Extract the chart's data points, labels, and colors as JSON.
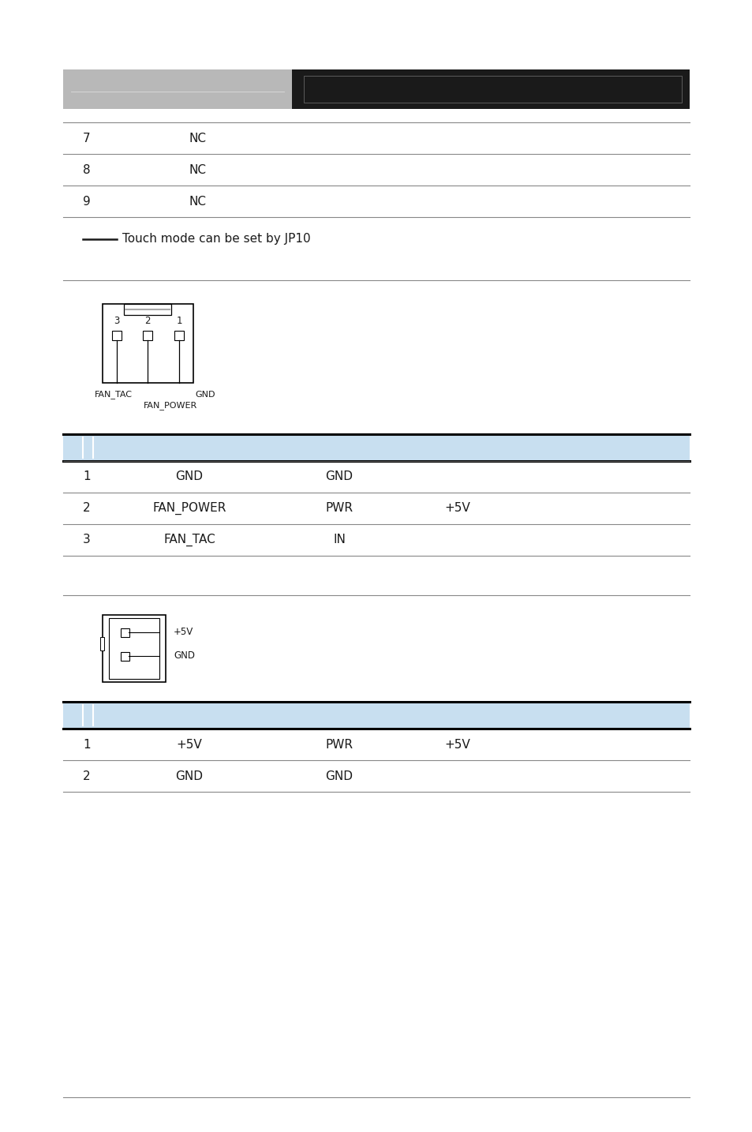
{
  "bg_color": "#ffffff",
  "header_gray_color": "#b8b8b8",
  "header_black_color": "#1a1a1a",
  "section_blue_color": "#c8dff0",
  "text_color": "#1a1a1a",
  "top_rows": [
    {
      "pin": "7",
      "signal": "NC"
    },
    {
      "pin": "8",
      "signal": "NC"
    },
    {
      "pin": "9",
      "signal": "NC"
    }
  ],
  "touch_note": "Touch mode can be set by JP10",
  "section1_rows": [
    {
      "pin": "1",
      "signal": "GND",
      "type": "GND",
      "value": ""
    },
    {
      "pin": "2",
      "signal": "FAN_POWER",
      "type": "PWR",
      "value": "+5V"
    },
    {
      "pin": "3",
      "signal": "FAN_TAC",
      "type": "IN",
      "value": ""
    }
  ],
  "section2_rows": [
    {
      "pin": "1",
      "signal": "+5V",
      "type": "PWR",
      "value": "+5V"
    },
    {
      "pin": "2",
      "signal": "GND",
      "type": "GND",
      "value": ""
    }
  ]
}
